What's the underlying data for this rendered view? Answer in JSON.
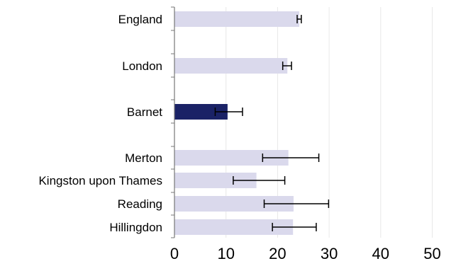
{
  "chart_data": {
    "type": "bar",
    "orientation": "horizontal",
    "title": "",
    "xlabel": "",
    "ylabel": "",
    "xlim": [
      0,
      55
    ],
    "xticks": [
      0,
      10,
      20,
      30,
      40,
      50
    ],
    "grid": "vertical",
    "categories": [
      "England",
      "London",
      "Barnet",
      "Merton",
      "Kingston upon Thames",
      "Reading",
      "Hillingdon"
    ],
    "values": [
      24.2,
      21.9,
      10.3,
      22.1,
      15.9,
      23.1,
      23.0
    ],
    "error_low": [
      23.8,
      21.0,
      7.9,
      17.1,
      11.4,
      17.4,
      19.0
    ],
    "error_high": [
      24.6,
      22.7,
      13.2,
      28.0,
      21.4,
      29.9,
      27.5
    ],
    "highlight": "Barnet",
    "colors": {
      "bar": "#dad9ec",
      "highlight_bar": "#1a2266",
      "error_bar": "#000000",
      "grid": "#e8e8e8",
      "axis": "#777777"
    }
  }
}
